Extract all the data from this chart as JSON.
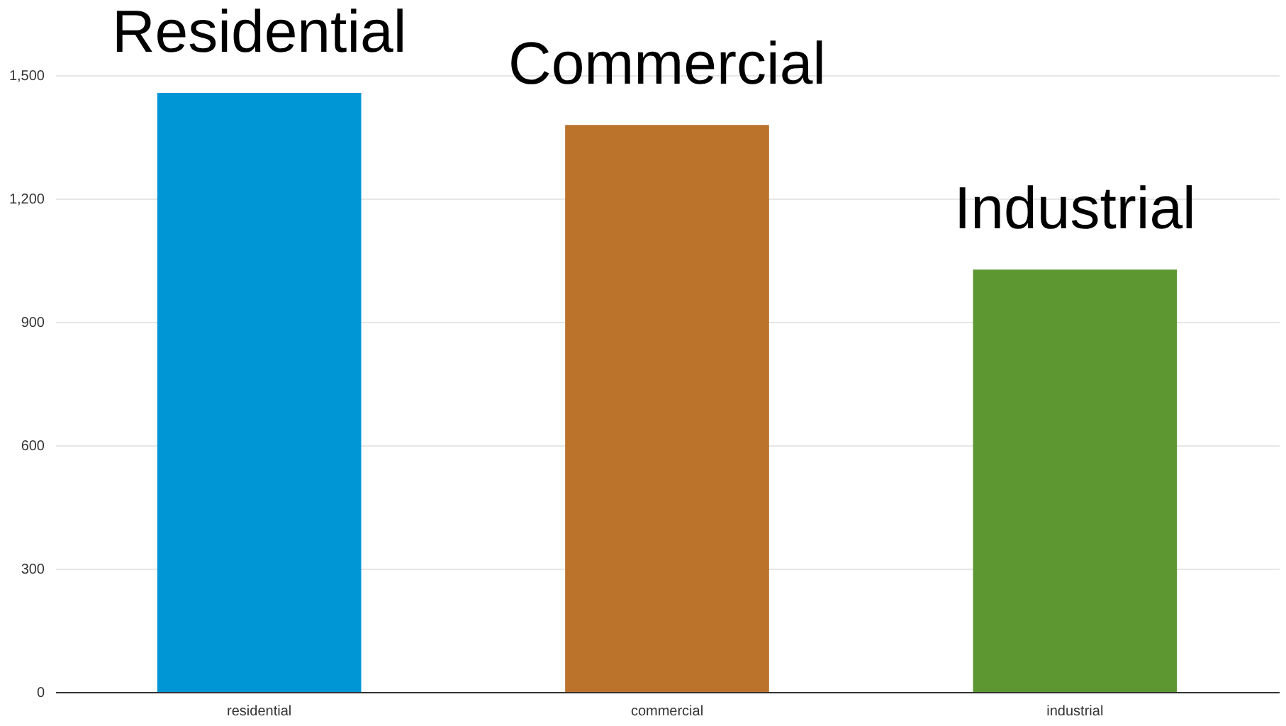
{
  "chart_data": {
    "type": "bar",
    "categories": [
      "residential",
      "commercial",
      "industrial"
    ],
    "values": [
      1457,
      1379,
      1027
    ],
    "colors": [
      "#0096d6",
      "#bb722a",
      "#5c9732"
    ],
    "ylim": [
      0,
      1500
    ],
    "yticks": [
      {
        "value": 0,
        "label": "0"
      },
      {
        "value": 300,
        "label": "300"
      },
      {
        "value": 600,
        "label": "600"
      },
      {
        "value": 900,
        "label": "900"
      },
      {
        "value": 1200,
        "label": "1,200"
      },
      {
        "value": 1500,
        "label": "1,500"
      }
    ],
    "grid": "y",
    "annotations": [
      {
        "text": "Residential",
        "x": "residential",
        "y": 1457
      },
      {
        "text": "Commercial",
        "x": "commercial",
        "y": 1379
      },
      {
        "text": "Industrial",
        "x": "industrial",
        "y": 1027
      }
    ]
  }
}
